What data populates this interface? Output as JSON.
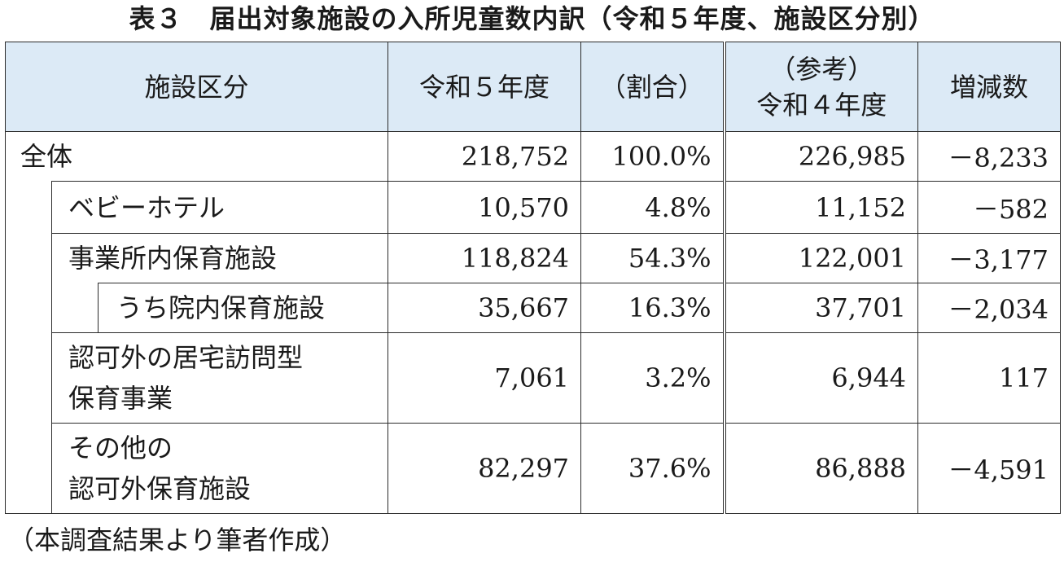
{
  "title": "表３　届出対象施設の入所児童数内訳（令和５年度、施設区分別）",
  "headers": {
    "category": "施設区分",
    "r5": "令和５年度",
    "share": "（割合）",
    "r4_line1": "（参考）",
    "r4_line2": "令和４年度",
    "change": "増減数"
  },
  "rows": [
    {
      "label": "全体",
      "r5": "218,752",
      "share": "100.0%",
      "r4": "226,985",
      "change": "－8,233"
    },
    {
      "label": "ベビーホテル",
      "r5": "10,570",
      "share": "4.8%",
      "r4": "11,152",
      "change": "－582"
    },
    {
      "label": "事業所内保育施設",
      "r5": "118,824",
      "share": "54.3%",
      "r4": "122,001",
      "change": "－3,177"
    },
    {
      "label": "うち院内保育施設",
      "r5": "35,667",
      "share": "16.3%",
      "r4": "37,701",
      "change": "－2,034"
    },
    {
      "label_line1": "認可外の居宅訪問型",
      "label_line2": "保育事業",
      "r5": "7,061",
      "share": "3.2%",
      "r4": "6,944",
      "change": "117"
    },
    {
      "label_line1": "その他の",
      "label_line2": "認可外保育施設",
      "r5": "82,297",
      "share": "37.6%",
      "r4": "86,888",
      "change": "－4,591"
    }
  ],
  "note": "（本調査結果より筆者作成）",
  "colors": {
    "header_bg": "#dceaf6",
    "border": "#2b2b2b"
  }
}
